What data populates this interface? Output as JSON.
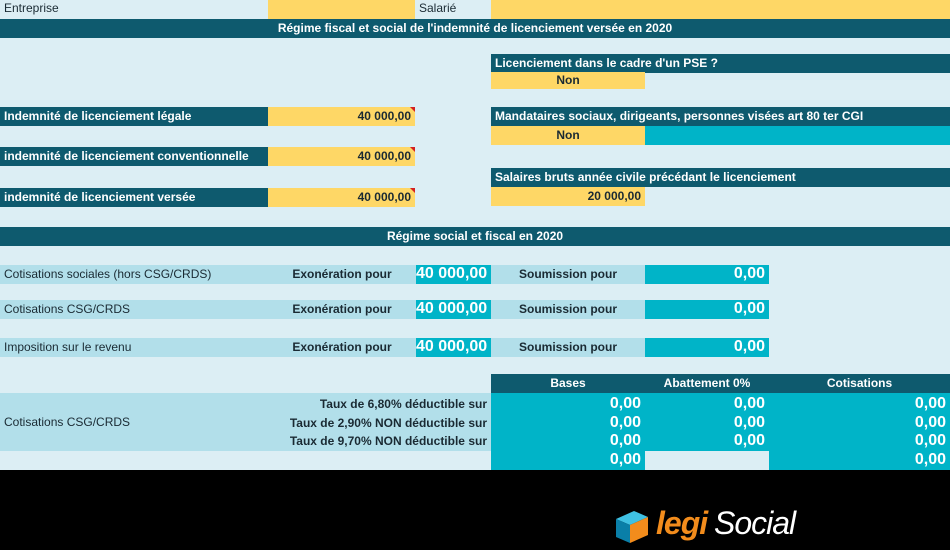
{
  "header": {
    "entreprise_label": "Entreprise",
    "salarie_label": "Salarié",
    "title": "Régime fiscal et social de l'indemnité de licenciement versée en 2020"
  },
  "pse": {
    "question": "Licenciement dans le cadre d'un PSE ?",
    "value": "Non"
  },
  "mandataires": {
    "question": "Mandataires sociaux, dirigeants, personnes visées art 80 ter CGI",
    "value": "Non"
  },
  "salaires": {
    "label": "Salaires bruts année civile précédant le licenciement",
    "value": "20 000,00"
  },
  "indemnites": [
    {
      "label": "Indemnité de licenciement légale",
      "value": "40 000,00"
    },
    {
      "label": "indemnité de licenciement conventionnelle",
      "value": "40 000,00"
    },
    {
      "label": "indemnité de licenciement versée",
      "value": "40 000,00"
    }
  ],
  "regime_title": "Régime social et fiscal en 2020",
  "regime_rows": [
    {
      "label": "Cotisations sociales (hors CSG/CRDS)",
      "exo_label": "Exonération pour",
      "exo_value": "40 000,00",
      "sou_label": "Soumission pour",
      "sou_value": "0,00"
    },
    {
      "label": "Cotisations CSG/CRDS",
      "exo_label": "Exonération pour",
      "exo_value": "40 000,00",
      "sou_label": "Soumission pour",
      "sou_value": "0,00"
    },
    {
      "label": "Imposition sur le revenu",
      "exo_label": "Exonération pour",
      "exo_value": "40 000,00",
      "sou_label": "Soumission pour",
      "sou_value": "0,00"
    }
  ],
  "csg_table": {
    "label": "Cotisations CSG/CRDS",
    "headers": [
      "Bases",
      "Abattement 0%",
      "Cotisations"
    ],
    "rows": [
      {
        "label": "Taux de 6,80% déductible sur",
        "base": "0,00",
        "abattement": "0,00",
        "cotisation": "0,00"
      },
      {
        "label": "Taux de 2,90% NON déductible sur",
        "base": "0,00",
        "abattement": "0,00",
        "cotisation": "0,00"
      },
      {
        "label": "Taux de 9,70% NON déductible sur",
        "base": "0,00",
        "abattement": "0,00",
        "cotisation": "0,00"
      }
    ],
    "total": {
      "base": "0,00",
      "cotisation": "0,00"
    }
  },
  "logo": {
    "text_a": "legi",
    "text_b": "Social"
  },
  "colors": {
    "dark": "#0e5a6e",
    "yellow": "#fed766",
    "cyan": "#00b4c8",
    "light": "#dceef4"
  }
}
